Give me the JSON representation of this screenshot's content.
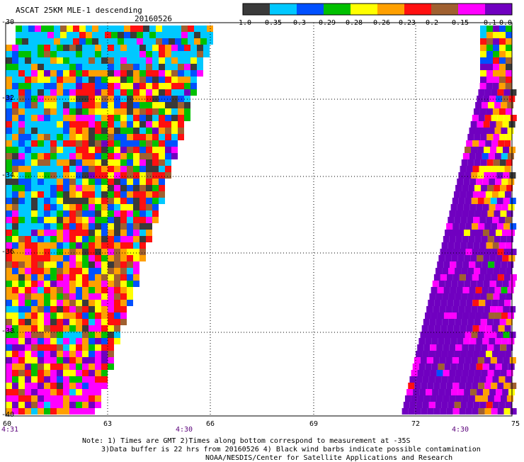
{
  "header": {
    "product": "ASCAT 25KM MLE-1 descending",
    "date": "20160526"
  },
  "colorbar": {
    "labels": [
      "-1.0",
      "-0.35",
      "-0.3",
      "-0.29",
      "-0.28",
      "-0.26",
      "-0.23",
      "-0.2",
      "-0.15",
      "-0.1",
      "0.0"
    ],
    "colors": [
      "#3a3a3a",
      "#00c8ff",
      "#0050ff",
      "#00c000",
      "#ffff00",
      "#ffa000",
      "#ff1010",
      "#a06030",
      "#ff00ff",
      "#7000c0"
    ]
  },
  "axes": {
    "lat_labels": [
      "-30",
      "-32",
      "-34",
      "-36",
      "-38",
      "-40"
    ],
    "lon_labels": [
      "60",
      "63",
      "66",
      "69",
      "72",
      "75"
    ],
    "lat_range": [
      -40,
      -30
    ],
    "lon_range": [
      60,
      75
    ]
  },
  "times": [
    "4:31",
    "4:30",
    "4:30"
  ],
  "notes": [
    "Note: 1) Times are GMT 2)Times along bottom correspond to measurement at -35S",
    "3)Data buffer is 22 hrs from 20160526 4) Black wind barbs indicate possible contamination",
    "NOAA/NESDIS/Center for Satellite Applications and Research"
  ]
}
